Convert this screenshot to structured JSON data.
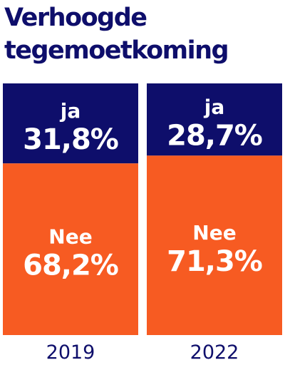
{
  "title": "Verhoogde tegemoetkoming",
  "colors": {
    "ja": "#0e0e6b",
    "nee": "#f75b22",
    "text": "#0e0e6b",
    "label": "#ffffff"
  },
  "chart_data": {
    "type": "bar",
    "stacked": true,
    "title": "Verhoogde tegemoetkoming",
    "categories": [
      "2019",
      "2022"
    ],
    "ylim": [
      0,
      100
    ],
    "series": [
      {
        "name": "ja",
        "values": [
          31.8,
          28.7
        ],
        "labels": [
          "31,8%",
          "28,7%"
        ]
      },
      {
        "name": "Nee",
        "values": [
          68.2,
          71.3
        ],
        "labels": [
          "68,2%",
          "71,3%"
        ]
      }
    ]
  }
}
